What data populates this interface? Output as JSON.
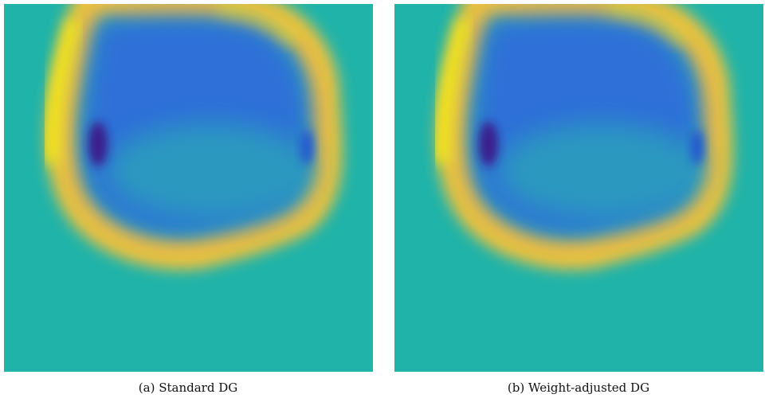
{
  "panels": [
    {
      "caption": "(a) Standard DG"
    },
    {
      "caption": "(b) Weight-adjusted DG"
    }
  ]
}
